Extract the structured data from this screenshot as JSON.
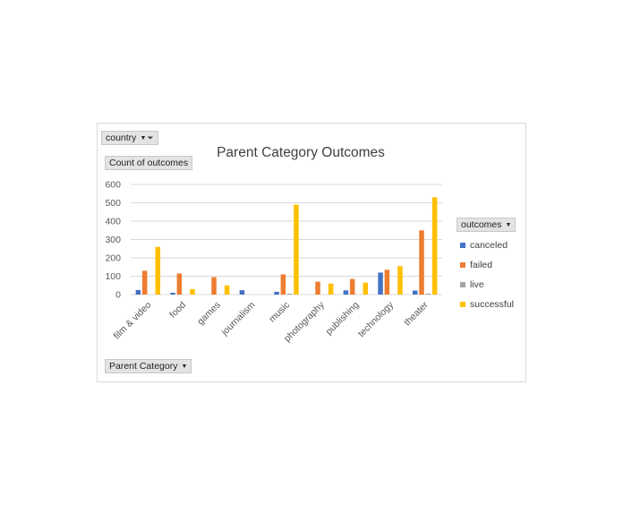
{
  "pivot": {
    "filter_label": "country",
    "values_label": "Count of outcomes",
    "axis_field_label": "Parent Category",
    "legend_field_label": "outcomes"
  },
  "colors": {
    "canceled": "#4472c4",
    "failed": "#ed7d31",
    "live": "#a5a5a5",
    "successful": "#ffc000",
    "gridline": "#d9d9d9",
    "axis_text": "#595959"
  },
  "icons": [
    "dropdown-arrow-icon",
    "filter-funnel-icon"
  ],
  "chart_data": {
    "type": "bar",
    "title": "Parent Category Outcomes",
    "xlabel": "",
    "ylabel": "",
    "ylim": [
      0,
      600
    ],
    "yticks": [
      "0",
      "100",
      "200",
      "300",
      "400",
      "500",
      "600"
    ],
    "grid": true,
    "legend_position": "right",
    "categories": [
      "film & video",
      "food",
      "games",
      "journalism",
      "music",
      "photography",
      "publishing",
      "technology",
      "theater"
    ],
    "series": [
      {
        "name": "canceled",
        "values": [
          25,
          10,
          0,
          24,
          15,
          0,
          23,
          120,
          22
        ]
      },
      {
        "name": "failed",
        "values": [
          130,
          115,
          95,
          0,
          110,
          70,
          85,
          135,
          350
        ]
      },
      {
        "name": "live",
        "values": [
          0,
          0,
          0,
          0,
          5,
          0,
          0,
          0,
          5
        ]
      },
      {
        "name": "successful",
        "values": [
          260,
          30,
          50,
          0,
          490,
          60,
          65,
          155,
          530
        ]
      }
    ]
  }
}
